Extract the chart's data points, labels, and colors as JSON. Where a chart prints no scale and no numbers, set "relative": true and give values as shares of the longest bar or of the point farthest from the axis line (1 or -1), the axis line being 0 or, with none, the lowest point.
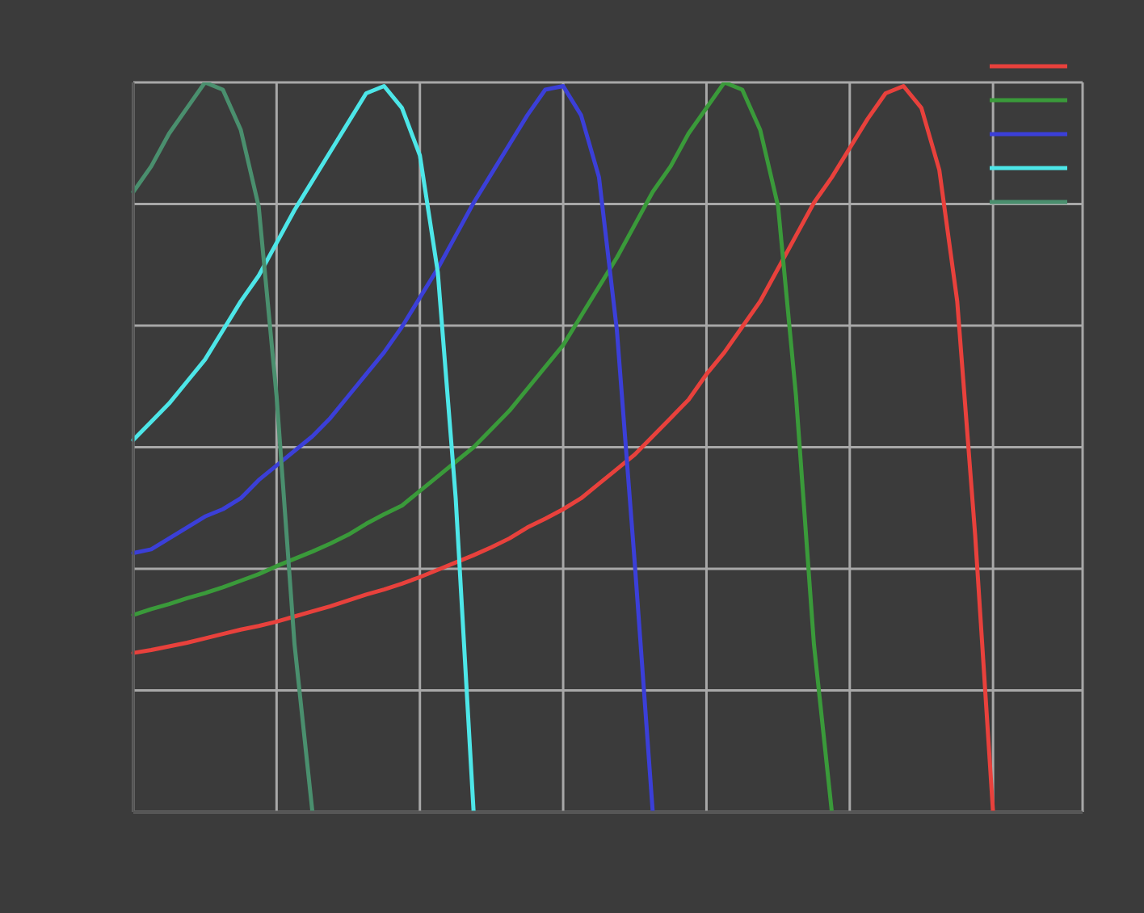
{
  "chart_data": {
    "type": "line",
    "relative": true,
    "grid": true,
    "tick_labels": false,
    "marker": "none",
    "line_style": "solid",
    "categories": [
      null,
      null,
      null,
      null,
      null,
      null,
      null,
      null,
      null,
      null,
      null,
      null,
      null,
      null,
      null,
      null,
      null,
      null,
      null,
      null,
      null,
      null,
      null,
      null,
      null,
      null,
      null,
      null,
      null,
      null,
      null,
      null,
      null,
      null,
      null,
      null,
      null,
      null,
      null,
      null,
      null,
      null,
      null,
      null,
      null,
      null,
      null,
      null,
      null,
      null,
      null,
      null,
      null,
      null
    ],
    "series": [
      {
        "color": "#e8413c",
        "values": [
          0.218,
          0.222,
          0.227,
          0.232,
          0.238,
          0.244,
          0.25,
          0.255,
          0.261,
          0.268,
          0.275,
          0.282,
          0.29,
          0.298,
          0.305,
          0.313,
          0.322,
          0.332,
          0.342,
          0.352,
          0.363,
          0.375,
          0.39,
          0.402,
          0.415,
          0.43,
          0.45,
          0.47,
          0.49,
          0.515,
          0.54,
          0.565,
          0.6,
          0.63,
          0.665,
          0.7,
          0.745,
          0.79,
          0.835,
          0.87,
          0.91,
          0.95,
          0.985,
          0.995,
          0.965,
          0.88,
          0.7,
          0.38,
          0,
          null,
          null,
          null,
          null,
          null
        ]
      },
      {
        "color": "#3a9a3a",
        "values": [
          0.27,
          0.278,
          0.285,
          0.293,
          0.3,
          0.308,
          0.317,
          0.326,
          0.337,
          0.347,
          0.357,
          0.368,
          0.38,
          0.395,
          0.408,
          0.42,
          0.44,
          0.46,
          0.48,
          0.5,
          0.525,
          0.55,
          0.58,
          0.61,
          0.64,
          0.68,
          0.72,
          0.76,
          0.805,
          0.85,
          0.885,
          0.93,
          0.965,
          1,
          0.99,
          0.935,
          0.83,
          0.57,
          0.23,
          0,
          null,
          null,
          null,
          null,
          null,
          null,
          null,
          null,
          null,
          null,
          null,
          null,
          null,
          null
        ]
      },
      {
        "color": "#3b3fd8",
        "values": [
          0.355,
          0.36,
          0.375,
          0.39,
          0.405,
          0.415,
          0.43,
          0.455,
          0.475,
          0.495,
          0.515,
          0.54,
          0.57,
          0.6,
          0.63,
          0.665,
          0.705,
          0.745,
          0.79,
          0.835,
          0.875,
          0.915,
          0.955,
          0.99,
          0.995,
          0.955,
          0.87,
          0.66,
          0.34,
          0,
          null,
          null,
          null,
          null,
          null,
          null,
          null,
          null,
          null,
          null,
          null,
          null,
          null,
          null,
          null,
          null,
          null,
          null,
          null,
          null,
          null,
          null,
          null,
          null
        ]
      },
      {
        "color": "#4de6e8",
        "values": [
          0.51,
          0.535,
          0.56,
          0.59,
          0.62,
          0.66,
          0.7,
          0.735,
          0.78,
          0.825,
          0.865,
          0.905,
          0.945,
          0.985,
          0.995,
          0.965,
          0.9,
          0.74,
          0.43,
          0,
          null,
          null,
          null,
          null,
          null,
          null,
          null,
          null,
          null,
          null,
          null,
          null,
          null,
          null,
          null,
          null,
          null,
          null,
          null,
          null,
          null,
          null,
          null,
          null,
          null,
          null,
          null,
          null,
          null,
          null,
          null,
          null,
          null,
          null
        ]
      },
      {
        "color": "#4a8f6e",
        "values": [
          0.85,
          0.885,
          0.93,
          0.965,
          1,
          0.99,
          0.935,
          0.83,
          0.57,
          0.23,
          0,
          null,
          null,
          null,
          null,
          null,
          null,
          null,
          null,
          null,
          null,
          null,
          null,
          null,
          null,
          null,
          null,
          null,
          null,
          null,
          null,
          null,
          null,
          null,
          null,
          null,
          null,
          null,
          null,
          null,
          null,
          null,
          null,
          null,
          null,
          null,
          null,
          null,
          null,
          null,
          null,
          null,
          null,
          null
        ]
      }
    ]
  }
}
